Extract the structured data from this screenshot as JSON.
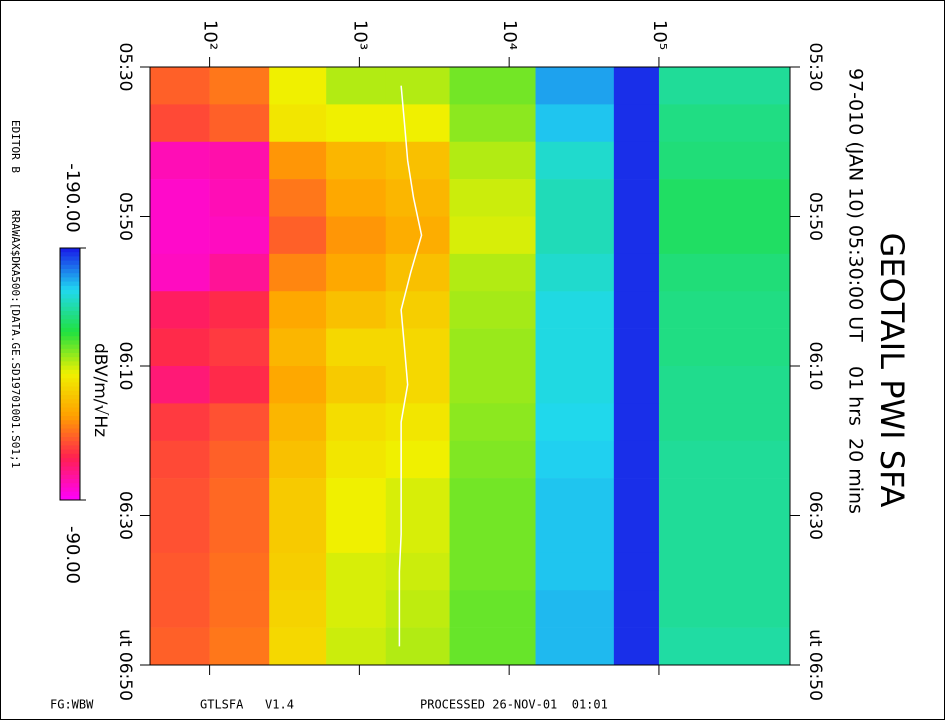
{
  "chart_data": {
    "type": "spectrogram",
    "title": "GEOTAIL PWI SFA",
    "subtitle": "97-010 (JAN 10) 05:30:00 UT    01 hrs  20 mins",
    "colorbar_label": "dBV/m/√Hz",
    "editor": "EDITOR B",
    "file": "RRAWAX$DKA500:[DATA.GE.SD19701001.S01;1",
    "footer": [
      "FG:WBW",
      "GTLSFA   V1.4",
      "PROCESSED 26-NOV-01  01:01"
    ],
    "xscale": "log",
    "xlim": [
      40,
      750000
    ],
    "xticks": [
      {
        "value": 100,
        "label": "10²"
      },
      {
        "value": 1000,
        "label": "10³"
      },
      {
        "value": 10000,
        "label": "10⁴"
      },
      {
        "value": 100000,
        "label": "10⁵"
      }
    ],
    "ylim": [
      330,
      410
    ],
    "yticks": [
      {
        "value": 330,
        "label": "05:30"
      },
      {
        "value": 350,
        "label": "05:50"
      },
      {
        "value": 370,
        "label": "06:10"
      },
      {
        "value": 390,
        "label": "06:30"
      },
      {
        "value": 410,
        "label": "ut 06:50"
      }
    ],
    "xbins": [
      40,
      100,
      250,
      600,
      1500,
      4000,
      15000,
      50000,
      100000,
      750000
    ],
    "ybins": [
      330,
      335,
      340,
      345,
      350,
      355,
      360,
      365,
      370,
      375,
      380,
      385,
      390,
      395,
      400,
      405,
      410
    ],
    "values": [
      [
        -115,
        -118,
        -140,
        -145,
        -145,
        -150,
        -178,
        -188,
        -165
      ],
      [
        -112,
        -115,
        -138,
        -140,
        -140,
        -148,
        -175,
        -188,
        -163
      ],
      [
        -97,
        -98,
        -122,
        -128,
        -130,
        -145,
        -170,
        -188,
        -162
      ],
      [
        -95,
        -97,
        -118,
        -125,
        -128,
        -143,
        -168,
        -188,
        -160
      ],
      [
        -95,
        -96,
        -115,
        -122,
        -126,
        -142,
        -168,
        -188,
        -160
      ],
      [
        -96,
        -100,
        -120,
        -125,
        -130,
        -145,
        -170,
        -188,
        -162
      ],
      [
        -105,
        -108,
        -125,
        -130,
        -133,
        -146,
        -172,
        -188,
        -163
      ],
      [
        -108,
        -110,
        -128,
        -135,
        -135,
        -147,
        -172,
        -188,
        -163
      ],
      [
        -103,
        -108,
        -125,
        -132,
        -135,
        -147,
        -172,
        -188,
        -164
      ],
      [
        -110,
        -113,
        -128,
        -136,
        -138,
        -148,
        -173,
        -188,
        -164
      ],
      [
        -112,
        -115,
        -130,
        -138,
        -140,
        -149,
        -174,
        -188,
        -165
      ],
      [
        -113,
        -116,
        -132,
        -140,
        -142,
        -150,
        -175,
        -188,
        -165
      ],
      [
        -113,
        -116,
        -132,
        -140,
        -142,
        -150,
        -175,
        -188,
        -165
      ],
      [
        -114,
        -117,
        -133,
        -142,
        -143,
        -150,
        -175,
        -188,
        -165
      ],
      [
        -114,
        -117,
        -134,
        -142,
        -144,
        -151,
        -176,
        -188,
        -165
      ],
      [
        -115,
        -118,
        -135,
        -143,
        -145,
        -151,
        -176,
        -188,
        -166
      ]
    ],
    "line": {
      "color": "#ffffff",
      "values": [
        1900,
        2000,
        2100,
        2300,
        2600,
        2200,
        1900,
        2000,
        2100,
        1900,
        1900,
        1900,
        1900,
        1850,
        1850,
        1850
      ]
    },
    "zlim": [
      -190,
      -90
    ],
    "zticks": [
      {
        "value": -190,
        "label": "-190.00"
      },
      {
        "value": -90,
        "label": "-90.00"
      }
    ],
    "colorscale": [
      "#1818e8",
      "#20d8f0",
      "#20e040",
      "#f0f000",
      "#ffa000",
      "#ff2050",
      "#ff00ff"
    ]
  }
}
